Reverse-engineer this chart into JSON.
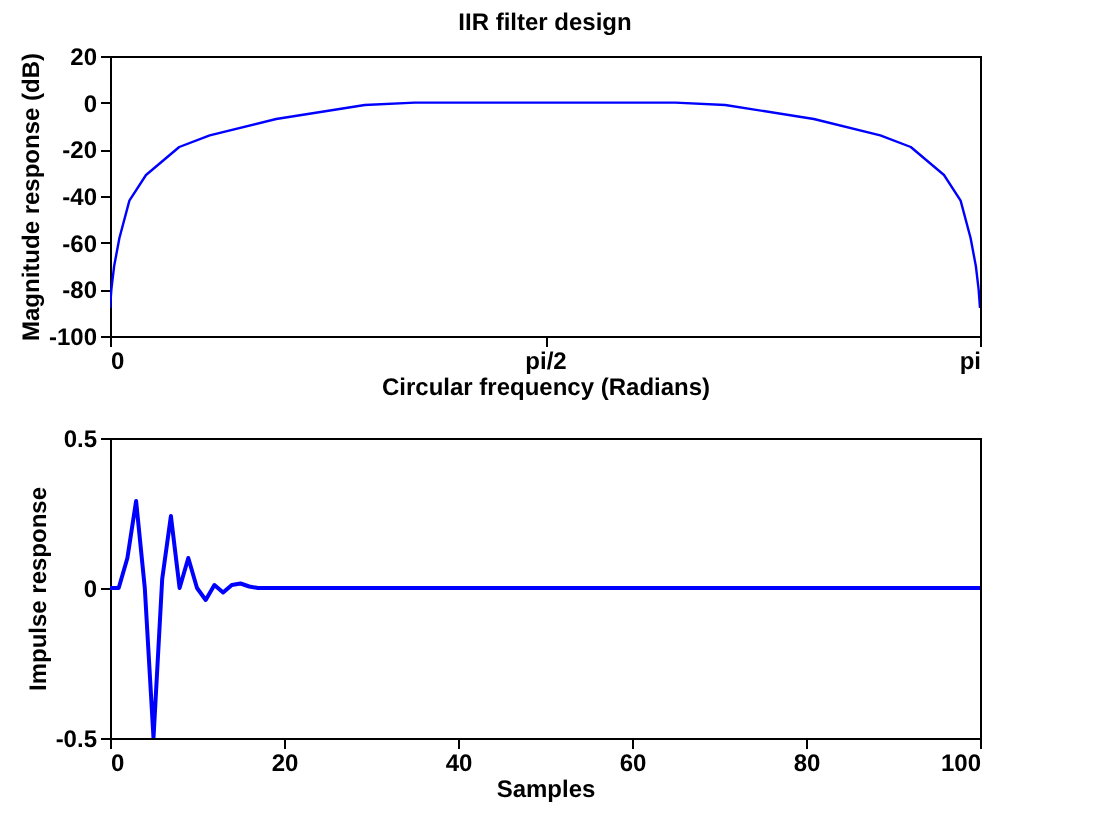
{
  "chart_data": [
    {
      "type": "line",
      "title": "IIR filter design",
      "xlabel": "Circular frequency (Radians)",
      "ylabel": "Magnitude response (dB)",
      "x": [
        0,
        0.005,
        0.015,
        0.034,
        0.07,
        0.13,
        0.25,
        0.36,
        0.6,
        0.92,
        1.1,
        1.3,
        1.5708,
        1.8416,
        2.0416,
        2.2216,
        2.5416,
        2.7816,
        2.8916,
        3.0116,
        3.0716,
        3.1076,
        3.1266,
        3.1366,
        3.1416
      ],
      "series": [
        {
          "color": "#0000ff",
          "values": [
            -88,
            -80,
            -70,
            -58,
            -42,
            -31,
            -19,
            -14,
            -7,
            -1,
            0,
            0,
            0,
            0,
            0,
            -1,
            -7,
            -14,
            -19,
            -31,
            -42,
            -58,
            -70,
            -80,
            -88
          ]
        }
      ],
      "xlim": [
        0,
        3.1416
      ],
      "xticks": [
        0,
        {
          "value": 1.5708,
          "label": "pi/2"
        },
        {
          "value": 3.1416,
          "label": "pi"
        }
      ],
      "ylim": [
        -100,
        20
      ],
      "yticks": [
        -100,
        -80,
        -60,
        -40,
        -20,
        0,
        20
      ],
      "grid": false,
      "line_style": "solid",
      "marker": "none"
    },
    {
      "type": "line",
      "xlabel": "Samples",
      "ylabel": "Impulse response",
      "x": [
        0,
        1,
        2,
        3,
        4,
        5,
        6,
        7,
        8,
        9,
        10,
        11,
        12,
        13,
        14,
        15,
        16,
        17,
        18,
        19,
        20,
        100
      ],
      "series": [
        {
          "color": "#0000ff",
          "values": [
            0,
            0,
            0.1,
            0.29,
            0,
            -0.5,
            0.03,
            0.24,
            0,
            0.1,
            0,
            -0.04,
            0.01,
            -0.015,
            0.01,
            0.015,
            0.005,
            0,
            0,
            0,
            0,
            0
          ]
        }
      ],
      "xlim": [
        0,
        100
      ],
      "xticks": [
        0,
        20,
        40,
        60,
        80,
        100
      ],
      "ylim": [
        -0.5,
        0.5
      ],
      "yticks": [
        -0.5,
        0,
        0.5
      ],
      "grid": false,
      "line_style": "solid",
      "marker": "none"
    }
  ]
}
